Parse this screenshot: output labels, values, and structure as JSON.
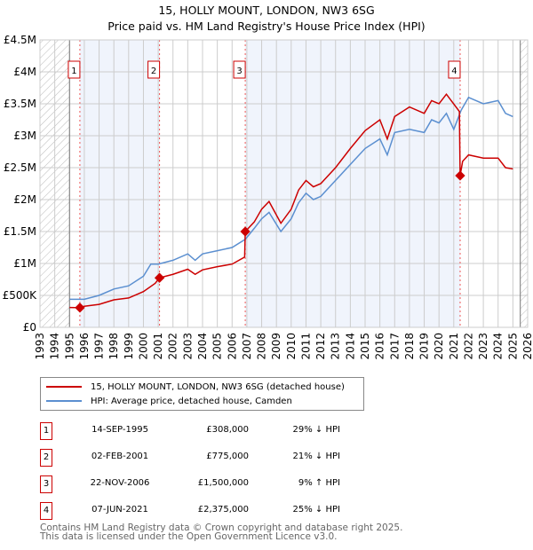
{
  "chart_data": {
    "type": "line",
    "title": "15, HOLLY MOUNT, LONDON, NW3 6SG",
    "subtitle": "Price paid vs. HM Land Registry's House Price Index (HPI)",
    "xlim": [
      1993,
      2026
    ],
    "ylim": [
      0,
      4500000
    ],
    "x_ticks": [
      "1993",
      "1994",
      "1995",
      "1996",
      "1997",
      "1998",
      "1999",
      "2000",
      "2001",
      "2002",
      "2003",
      "2004",
      "2005",
      "2006",
      "2007",
      "2008",
      "2009",
      "2010",
      "2011",
      "2012",
      "2013",
      "2014",
      "2015",
      "2016",
      "2017",
      "2018",
      "2019",
      "2020",
      "2021",
      "2022",
      "2023",
      "2024",
      "2025",
      "2026"
    ],
    "y_ticks": [
      {
        "v": 0,
        "label": "£0"
      },
      {
        "v": 500000,
        "label": "£500K"
      },
      {
        "v": 1000000,
        "label": "£1M"
      },
      {
        "v": 1500000,
        "label": "£1.5M"
      },
      {
        "v": 2000000,
        "label": "£2M"
      },
      {
        "v": 2500000,
        "label": "£2.5M"
      },
      {
        "v": 3000000,
        "label": "£3M"
      },
      {
        "v": 3500000,
        "label": "£3.5M"
      },
      {
        "v": 4000000,
        "label": "£4M"
      },
      {
        "v": 4500000,
        "label": "£4.5M"
      }
    ],
    "data_range": [
      1995,
      2025.5
    ],
    "series": [
      {
        "name": "15, HOLLY MOUNT, LONDON, NW3 6SG (detached house)",
        "color": "#cc0000",
        "x": [
          1995,
          1995.7,
          1996,
          1997,
          1998,
          1999,
          2000,
          2000.8,
          2001.09,
          2002,
          2003,
          2003.5,
          2004,
          2005,
          2006,
          2006.85,
          2006.89,
          2007.5,
          2008,
          2008.5,
          2009.3,
          2010,
          2010.5,
          2011,
          2011.5,
          2012,
          2013,
          2014,
          2015,
          2016,
          2016.5,
          2017,
          2018,
          2019,
          2019.5,
          2020,
          2020.5,
          2021.38,
          2021.43,
          2021.6,
          2022,
          2023,
          2024,
          2024.5,
          2025
        ],
        "y": [
          310000,
          308000,
          330000,
          360000,
          430000,
          460000,
          560000,
          690000,
          775000,
          830000,
          910000,
          830000,
          900000,
          950000,
          990000,
          1100000,
          1500000,
          1650000,
          1850000,
          1970000,
          1630000,
          1850000,
          2150000,
          2300000,
          2200000,
          2250000,
          2500000,
          2800000,
          3080000,
          3250000,
          2950000,
          3300000,
          3450000,
          3350000,
          3550000,
          3500000,
          3650000,
          3380000,
          2375000,
          2600000,
          2700000,
          2650000,
          2650000,
          2500000,
          2480000
        ]
      },
      {
        "name": "HPI: Average price, detached house, Camden",
        "color": "#5b8fd0",
        "x": [
          1995,
          1996,
          1997,
          1998,
          1999,
          2000,
          2000.5,
          2001,
          2002,
          2003,
          2003.5,
          2004,
          2005,
          2006,
          2006.9,
          2007.5,
          2008,
          2008.5,
          2009.3,
          2010,
          2010.5,
          2011,
          2011.5,
          2012,
          2013,
          2014,
          2015,
          2016,
          2016.5,
          2017,
          2018,
          2019,
          2019.5,
          2020,
          2020.5,
          2021,
          2021.5,
          2022,
          2023,
          2024,
          2024.5,
          2025
        ],
        "y": [
          440000,
          440000,
          500000,
          600000,
          650000,
          800000,
          990000,
          990000,
          1050000,
          1150000,
          1050000,
          1150000,
          1200000,
          1250000,
          1380000,
          1550000,
          1700000,
          1800000,
          1500000,
          1700000,
          1950000,
          2100000,
          2000000,
          2050000,
          2300000,
          2550000,
          2800000,
          2950000,
          2700000,
          3050000,
          3100000,
          3050000,
          3250000,
          3200000,
          3350000,
          3100000,
          3400000,
          3600000,
          3500000,
          3550000,
          3350000,
          3300000
        ]
      }
    ],
    "sales": [
      {
        "n": "1",
        "x": 1995.7,
        "y": 308000,
        "date": "14-SEP-1995",
        "price": "£308,000",
        "hpi": "29% ↓ HPI"
      },
      {
        "n": "2",
        "x": 2001.09,
        "y": 775000,
        "date": "02-FEB-2001",
        "price": "£775,000",
        "hpi": "21% ↓ HPI"
      },
      {
        "n": "3",
        "x": 2006.89,
        "y": 1500000,
        "date": "22-NOV-2006",
        "price": "£1,500,000",
        "hpi": "9% ↑ HPI"
      },
      {
        "n": "4",
        "x": 2021.43,
        "y": 2375000,
        "date": "07-JUN-2021",
        "price": "£2,375,000",
        "hpi": "25% ↓ HPI"
      }
    ],
    "legend_placement": "bottom"
  },
  "footer": [
    "Contains HM Land Registry data © Crown copyright and database right 2025.",
    "This data is licensed under the Open Government Licence v3.0."
  ]
}
